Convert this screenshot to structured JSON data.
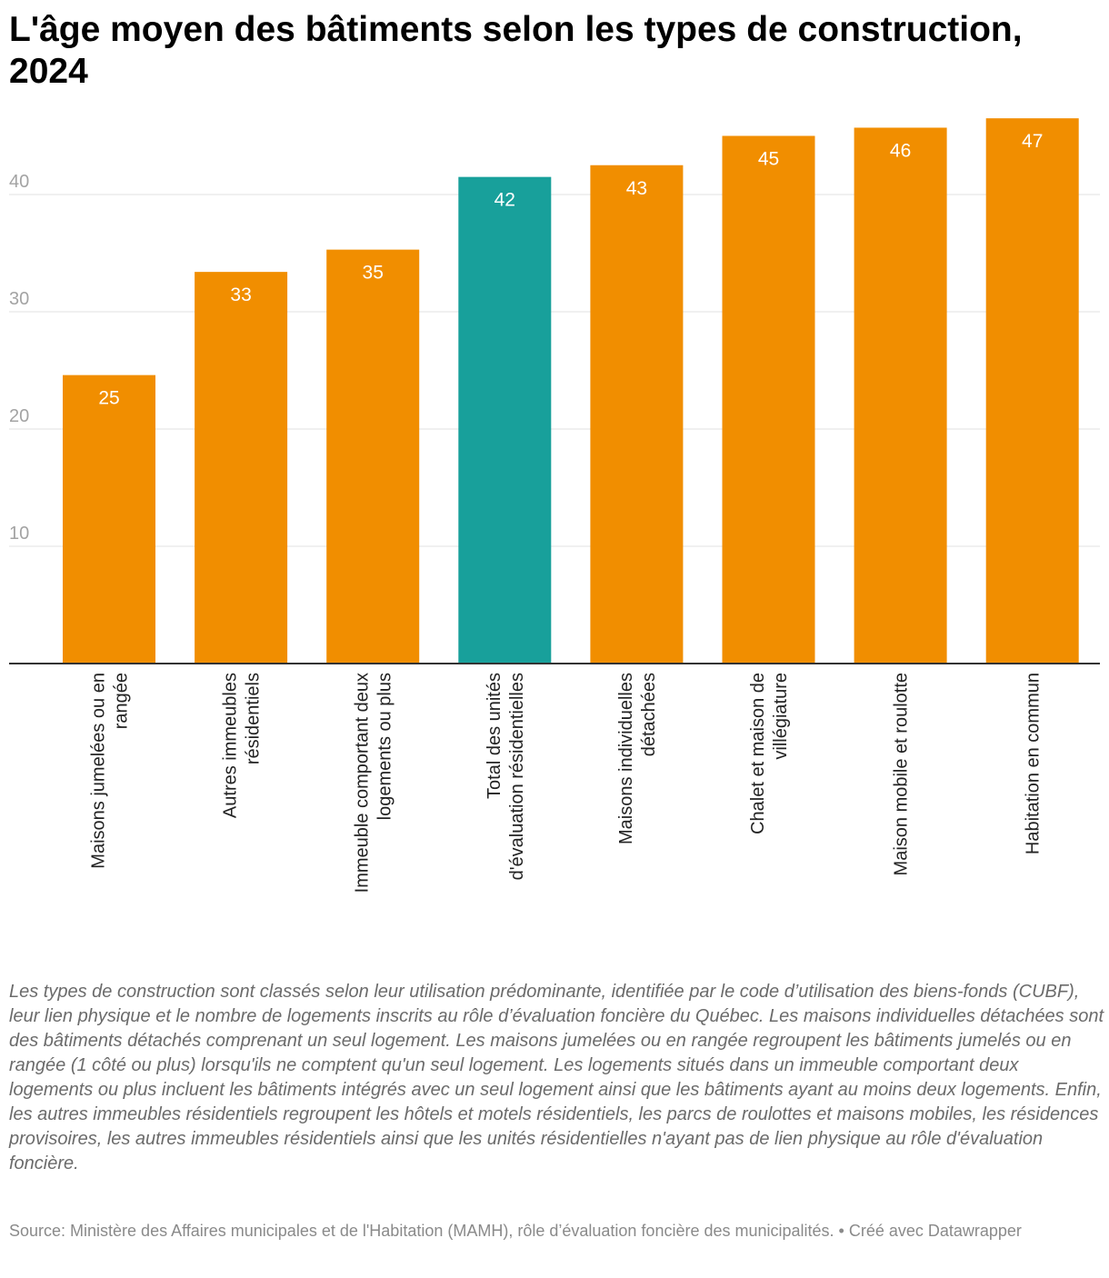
{
  "chart_data": {
    "type": "bar",
    "title": "L'âge moyen des bâtiments selon les types de construction, 2024",
    "categories": [
      [
        "Maisons jumelées ou en",
        "rangée"
      ],
      [
        "Autres immeubles",
        "résidentiels"
      ],
      [
        "Immeuble comportant deux",
        "logements ou plus"
      ],
      [
        "Total des unités",
        "d'évaluation résidentielles"
      ],
      [
        "Maisons individuelles",
        "détachées"
      ],
      [
        "Chalet et maison de",
        "villégiature"
      ],
      [
        "Maison mobile et roulotte"
      ],
      [
        "Habitation en commun"
      ]
    ],
    "values": [
      24.6,
      33.4,
      35.3,
      41.5,
      42.5,
      45.0,
      45.7,
      46.5
    ],
    "value_labels": [
      "25",
      "33",
      "35",
      "42",
      "43",
      "45",
      "46",
      "47"
    ],
    "highlight_index": 3,
    "ylim": [
      0,
      47
    ],
    "yticks": [
      10,
      20,
      30,
      40
    ],
    "grid": true,
    "colors": {
      "bar": "#f18e00",
      "highlight": "#18a09b"
    },
    "notes": "Les types de construction sont classés selon leur utilisation prédominante, identifiée par le code d’utilisation des biens-fonds (CUBF), leur lien physique et le nombre de logements inscrits au rôle d’évaluation foncière du Québec. Les maisons individuelles détachées sont des bâtiments détachés comprenant un seul logement. Les maisons jumelées ou en rangée regroupent les bâtiments jumelés ou en rangée (1 côté ou plus) lorsqu'ils ne comptent qu'un seul logement. Les logements situés dans un immeuble comportant deux logements ou plus incluent les bâtiments intégrés avec un seul logement ainsi que les bâtiments ayant au moins deux logements. Enfin, les autres immeubles résidentiels regroupent les hôtels et motels résidentiels, les parcs de roulottes et maisons mobiles, les résidences provisoires, les autres immeubles résidentiels ainsi que les unités résidentielles n'ayant pas de lien physique au rôle d'évaluation foncière.",
    "source": "Source: Ministère des Affaires municipales et de l'Habitation (MAMH), rôle d’évaluation foncière des municipalités. • Créé avec Datawrapper"
  }
}
